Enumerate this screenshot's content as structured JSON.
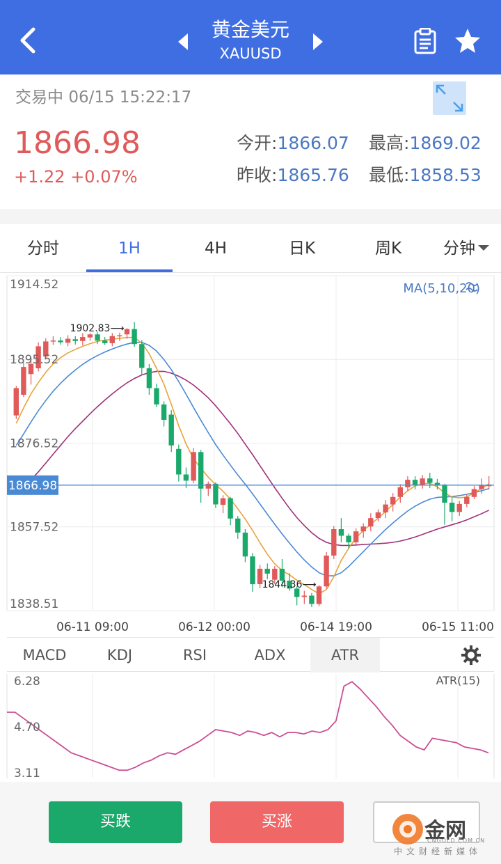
{
  "header": {
    "title": "黄金美元",
    "symbol": "XAUUSD"
  },
  "status": {
    "state": "交易中",
    "datetime": "06/15 15:22:17"
  },
  "quote": {
    "price": "1866.98",
    "change": "+1.22",
    "change_pct": "+0.07%",
    "open_label": "今开:",
    "open": "1866.07",
    "high_label": "最高:",
    "high": "1869.02",
    "prev_label": "昨收:",
    "prev": "1865.76",
    "low_label": "最低:",
    "low": "1858.53"
  },
  "tabs": [
    "分时",
    "1H",
    "4H",
    "日K",
    "周K",
    "分钟"
  ],
  "active_tab": "1H",
  "indicator_tabs": [
    "MACD",
    "KDJ",
    "RSI",
    "ADX",
    "ATR"
  ],
  "active_indicator": "ATR",
  "buttons": {
    "sell": "买跌",
    "buy": "买涨",
    "third": ""
  },
  "watermark": {
    "brand": "金网",
    "sub": "中文财经新媒体",
    "url": "CNGOLD.COM.CN"
  },
  "colors": {
    "header": "#3f6ee3",
    "up": "#e05a5a",
    "down": "#1aa96b",
    "ma5": "#e8a33a",
    "ma10": "#4a8ad4",
    "ma20": "#a0307a",
    "atr": "#cc4d94"
  },
  "chart_data": [
    {
      "type": "candlestick",
      "y_ticks": [
        "1914.52",
        "1895.52",
        "1876.52",
        "1857.52",
        "1838.51"
      ],
      "ylim": [
        1838.51,
        1914.52
      ],
      "x_tick_labels": [
        "06-11 09:00",
        "06-12 00:00",
        "06-14 19:00",
        "06-15 11:00"
      ],
      "legend": "MA(5,10,20)",
      "current_price_label": "1866.98",
      "current_price": 1866.98,
      "annotations": [
        {
          "text": "1902.83",
          "value": 1902.83
        },
        {
          "text": "1844.36",
          "value": 1844.36
        }
      ],
      "candles": [
        [
          1882.8,
          1889.0,
          1882.0,
          1889.5
        ],
        [
          1887.5,
          1893.8,
          1887.0,
          1894.8
        ],
        [
          1892.2,
          1894.5,
          1889.8,
          1895.8
        ],
        [
          1893.5,
          1898.5,
          1892.8,
          1899.4
        ],
        [
          1896.2,
          1899.6,
          1895.5,
          1900.3
        ],
        [
          1899.6,
          1899.8,
          1898.8,
          1900.8
        ],
        [
          1899.8,
          1899.4,
          1898.9,
          1900.6
        ],
        [
          1899.3,
          1900.2,
          1898.5,
          1901.0
        ],
        [
          1900.1,
          1899.7,
          1898.9,
          1900.8
        ],
        [
          1899.7,
          1900.6,
          1898.7,
          1901.5
        ],
        [
          1900.5,
          1901.2,
          1899.8,
          1901.5
        ],
        [
          1901.2,
          1899.8,
          1899.0,
          1901.8
        ],
        [
          1899.8,
          1899.2,
          1898.8,
          1900.6
        ],
        [
          1899.2,
          1900.8,
          1898.5,
          1901.5
        ],
        [
          1900.8,
          1901.0,
          1899.7,
          1901.6
        ],
        [
          1901.2,
          1902.4,
          1900.2,
          1902.6
        ],
        [
          1902.4,
          1899.0,
          1898.4,
          1904.0
        ],
        [
          1899.0,
          1893.6,
          1892.0,
          1899.9
        ],
        [
          1893.5,
          1889.0,
          1887.5,
          1894.5
        ],
        [
          1889.0,
          1885.3,
          1884.7,
          1890.0
        ],
        [
          1885.3,
          1881.8,
          1880.3,
          1886.0
        ],
        [
          1883.0,
          1876.0,
          1874.5,
          1884.0
        ],
        [
          1875.2,
          1869.4,
          1867.8,
          1876.2
        ],
        [
          1869.4,
          1868.0,
          1866.3,
          1871.0
        ],
        [
          1868.0,
          1874.5,
          1867.4,
          1875.4
        ],
        [
          1874.5,
          1866.2,
          1863.0,
          1875.0
        ],
        [
          1866.2,
          1867.3,
          1864.5,
          1867.8
        ],
        [
          1867.3,
          1862.6,
          1861.8,
          1867.6
        ],
        [
          1862.5,
          1864.0,
          1860.6,
          1864.7
        ],
        [
          1864.0,
          1859.4,
          1857.9,
          1864.3
        ],
        [
          1859.4,
          1856.2,
          1854.8,
          1860.0
        ],
        [
          1856.2,
          1850.8,
          1849.5,
          1857.0
        ],
        [
          1850.8,
          1844.5,
          1842.8,
          1851.6
        ],
        [
          1844.5,
          1848.0,
          1843.6,
          1848.9
        ],
        [
          1848.0,
          1846.9,
          1845.6,
          1849.2
        ],
        [
          1845.5,
          1848.0,
          1844.5,
          1848.6
        ],
        [
          1848.0,
          1845.3,
          1843.8,
          1850.2
        ],
        [
          1845.3,
          1843.5,
          1843.0,
          1847.0
        ],
        [
          1843.5,
          1841.6,
          1839.7,
          1844.0
        ],
        [
          1841.6,
          1841.9,
          1840.0,
          1843.0
        ],
        [
          1841.9,
          1840.0,
          1839.3,
          1842.5
        ],
        [
          1840.0,
          1844.0,
          1839.5,
          1844.3
        ],
        [
          1844.0,
          1851.0,
          1843.5,
          1851.8
        ],
        [
          1851.0,
          1857.0,
          1850.2,
          1857.7
        ],
        [
          1857.0,
          1855.5,
          1854.0,
          1859.5
        ],
        [
          1855.5,
          1854.0,
          1852.6,
          1856.0
        ],
        [
          1854.0,
          1856.5,
          1853.2,
          1857.2
        ],
        [
          1856.5,
          1857.6,
          1855.0,
          1858.3
        ],
        [
          1857.6,
          1859.5,
          1856.5,
          1860.6
        ],
        [
          1859.5,
          1860.8,
          1858.8,
          1861.5
        ],
        [
          1860.8,
          1862.6,
          1859.5,
          1863.6
        ],
        [
          1862.6,
          1864.3,
          1861.0,
          1865.2
        ],
        [
          1864.3,
          1866.5,
          1863.0,
          1867.2
        ],
        [
          1866.5,
          1868.2,
          1865.7,
          1869.0
        ],
        [
          1868.2,
          1867.0,
          1866.0,
          1869.0
        ],
        [
          1867.0,
          1868.5,
          1866.2,
          1869.3
        ],
        [
          1868.5,
          1867.5,
          1866.3,
          1869.8
        ],
        [
          1867.5,
          1867.0,
          1866.0,
          1868.4
        ],
        [
          1867.0,
          1863.0,
          1858.0,
          1867.3
        ],
        [
          1863.0,
          1860.9,
          1858.8,
          1864.5
        ],
        [
          1860.9,
          1862.7,
          1860.0,
          1863.4
        ],
        [
          1862.7,
          1864.3,
          1862.0,
          1864.9
        ],
        [
          1864.3,
          1866.1,
          1863.8,
          1866.8
        ],
        [
          1866.1,
          1866.9,
          1865.0,
          1868.5
        ],
        [
          1866.9,
          1866.98,
          1866.0,
          1869.02
        ]
      ],
      "ma5": [
        1881.0,
        1884.5,
        1887.7,
        1890.3,
        1892.6,
        1894.5,
        1895.9,
        1897.0,
        1897.8,
        1898.5,
        1899.1,
        1899.6,
        1899.9,
        1900.1,
        1900.3,
        1900.5,
        1900.5,
        1899.2,
        1896.8,
        1893.5,
        1889.9,
        1885.3,
        1880.5,
        1876.3,
        1873.0,
        1870.8,
        1868.8,
        1867.1,
        1865.6,
        1863.8,
        1861.6,
        1859.3,
        1856.7,
        1853.9,
        1851.3,
        1849.1,
        1847.6,
        1846.6,
        1845.4,
        1844.4,
        1843.3,
        1842.3,
        1843.3,
        1846.2,
        1849.9,
        1852.6,
        1855.0,
        1856.7,
        1858.1,
        1859.5,
        1861.0,
        1862.6,
        1864.3,
        1865.7,
        1866.8,
        1867.3,
        1867.4,
        1866.6,
        1865.2,
        1864.3,
        1864.1,
        1864.3,
        1865.3,
        1866.2,
        1867.3
      ],
      "ma10": [
        1876.0,
        1878.6,
        1881.3,
        1883.9,
        1886.2,
        1888.3,
        1890.1,
        1891.7,
        1893.1,
        1894.4,
        1895.5,
        1896.4,
        1897.2,
        1897.9,
        1898.5,
        1899.0,
        1899.4,
        1899.4,
        1898.7,
        1897.4,
        1895.5,
        1893.2,
        1890.5,
        1887.6,
        1884.6,
        1881.7,
        1878.9,
        1876.2,
        1873.8,
        1871.5,
        1869.3,
        1867.2,
        1865.0,
        1862.7,
        1860.4,
        1858.1,
        1855.9,
        1853.8,
        1851.8,
        1850.0,
        1848.4,
        1847.1,
        1846.4,
        1846.4,
        1847.1,
        1848.5,
        1850.2,
        1851.9,
        1853.6,
        1855.3,
        1856.9,
        1858.4,
        1859.8,
        1861.1,
        1862.2,
        1863.1,
        1863.8,
        1864.2,
        1864.3,
        1864.4,
        1864.6,
        1864.9,
        1865.3,
        1865.7,
        1866.2
      ],
      "ma20": [
        1865.0,
        1866.5,
        1868.2,
        1870.0,
        1872.0,
        1874.0,
        1876.0,
        1878.0,
        1879.8,
        1881.5,
        1883.2,
        1884.8,
        1886.3,
        1887.7,
        1889.0,
        1890.2,
        1891.2,
        1892.0,
        1892.5,
        1892.8,
        1892.8,
        1892.4,
        1891.7,
        1890.8,
        1889.7,
        1888.3,
        1886.8,
        1885.0,
        1883.0,
        1880.9,
        1878.7,
        1876.3,
        1873.9,
        1871.4,
        1868.9,
        1866.4,
        1864.0,
        1861.7,
        1859.6,
        1857.8,
        1856.2,
        1854.9,
        1854.0,
        1853.5,
        1853.3,
        1853.3,
        1853.4,
        1853.5,
        1853.6,
        1853.7,
        1853.8,
        1854.0,
        1854.3,
        1854.7,
        1855.2,
        1855.8,
        1856.4,
        1857.0,
        1857.5,
        1858.0,
        1858.5,
        1859.1,
        1859.8,
        1860.5,
        1861.3
      ]
    },
    {
      "type": "line",
      "label": "ATR(15)",
      "y_ticks": [
        "6.28",
        "4.70",
        "3.11"
      ],
      "ylim": [
        3.11,
        6.28
      ],
      "values": [
        5.2,
        5.2,
        5.0,
        4.8,
        4.6,
        4.4,
        4.2,
        4.0,
        3.8,
        3.7,
        3.6,
        3.5,
        3.4,
        3.3,
        3.2,
        3.2,
        3.3,
        3.45,
        3.55,
        3.7,
        3.8,
        3.75,
        3.9,
        4.05,
        4.2,
        4.4,
        4.6,
        4.55,
        4.5,
        4.4,
        4.55,
        4.5,
        4.4,
        4.5,
        4.35,
        4.5,
        4.5,
        4.45,
        4.55,
        4.5,
        4.6,
        4.9,
        6.1,
        6.25,
        6.0,
        5.7,
        5.4,
        5.05,
        4.75,
        4.4,
        4.2,
        4.0,
        3.9,
        4.3,
        4.25,
        4.2,
        4.15,
        4.0,
        3.95,
        3.9,
        3.8
      ]
    }
  ]
}
